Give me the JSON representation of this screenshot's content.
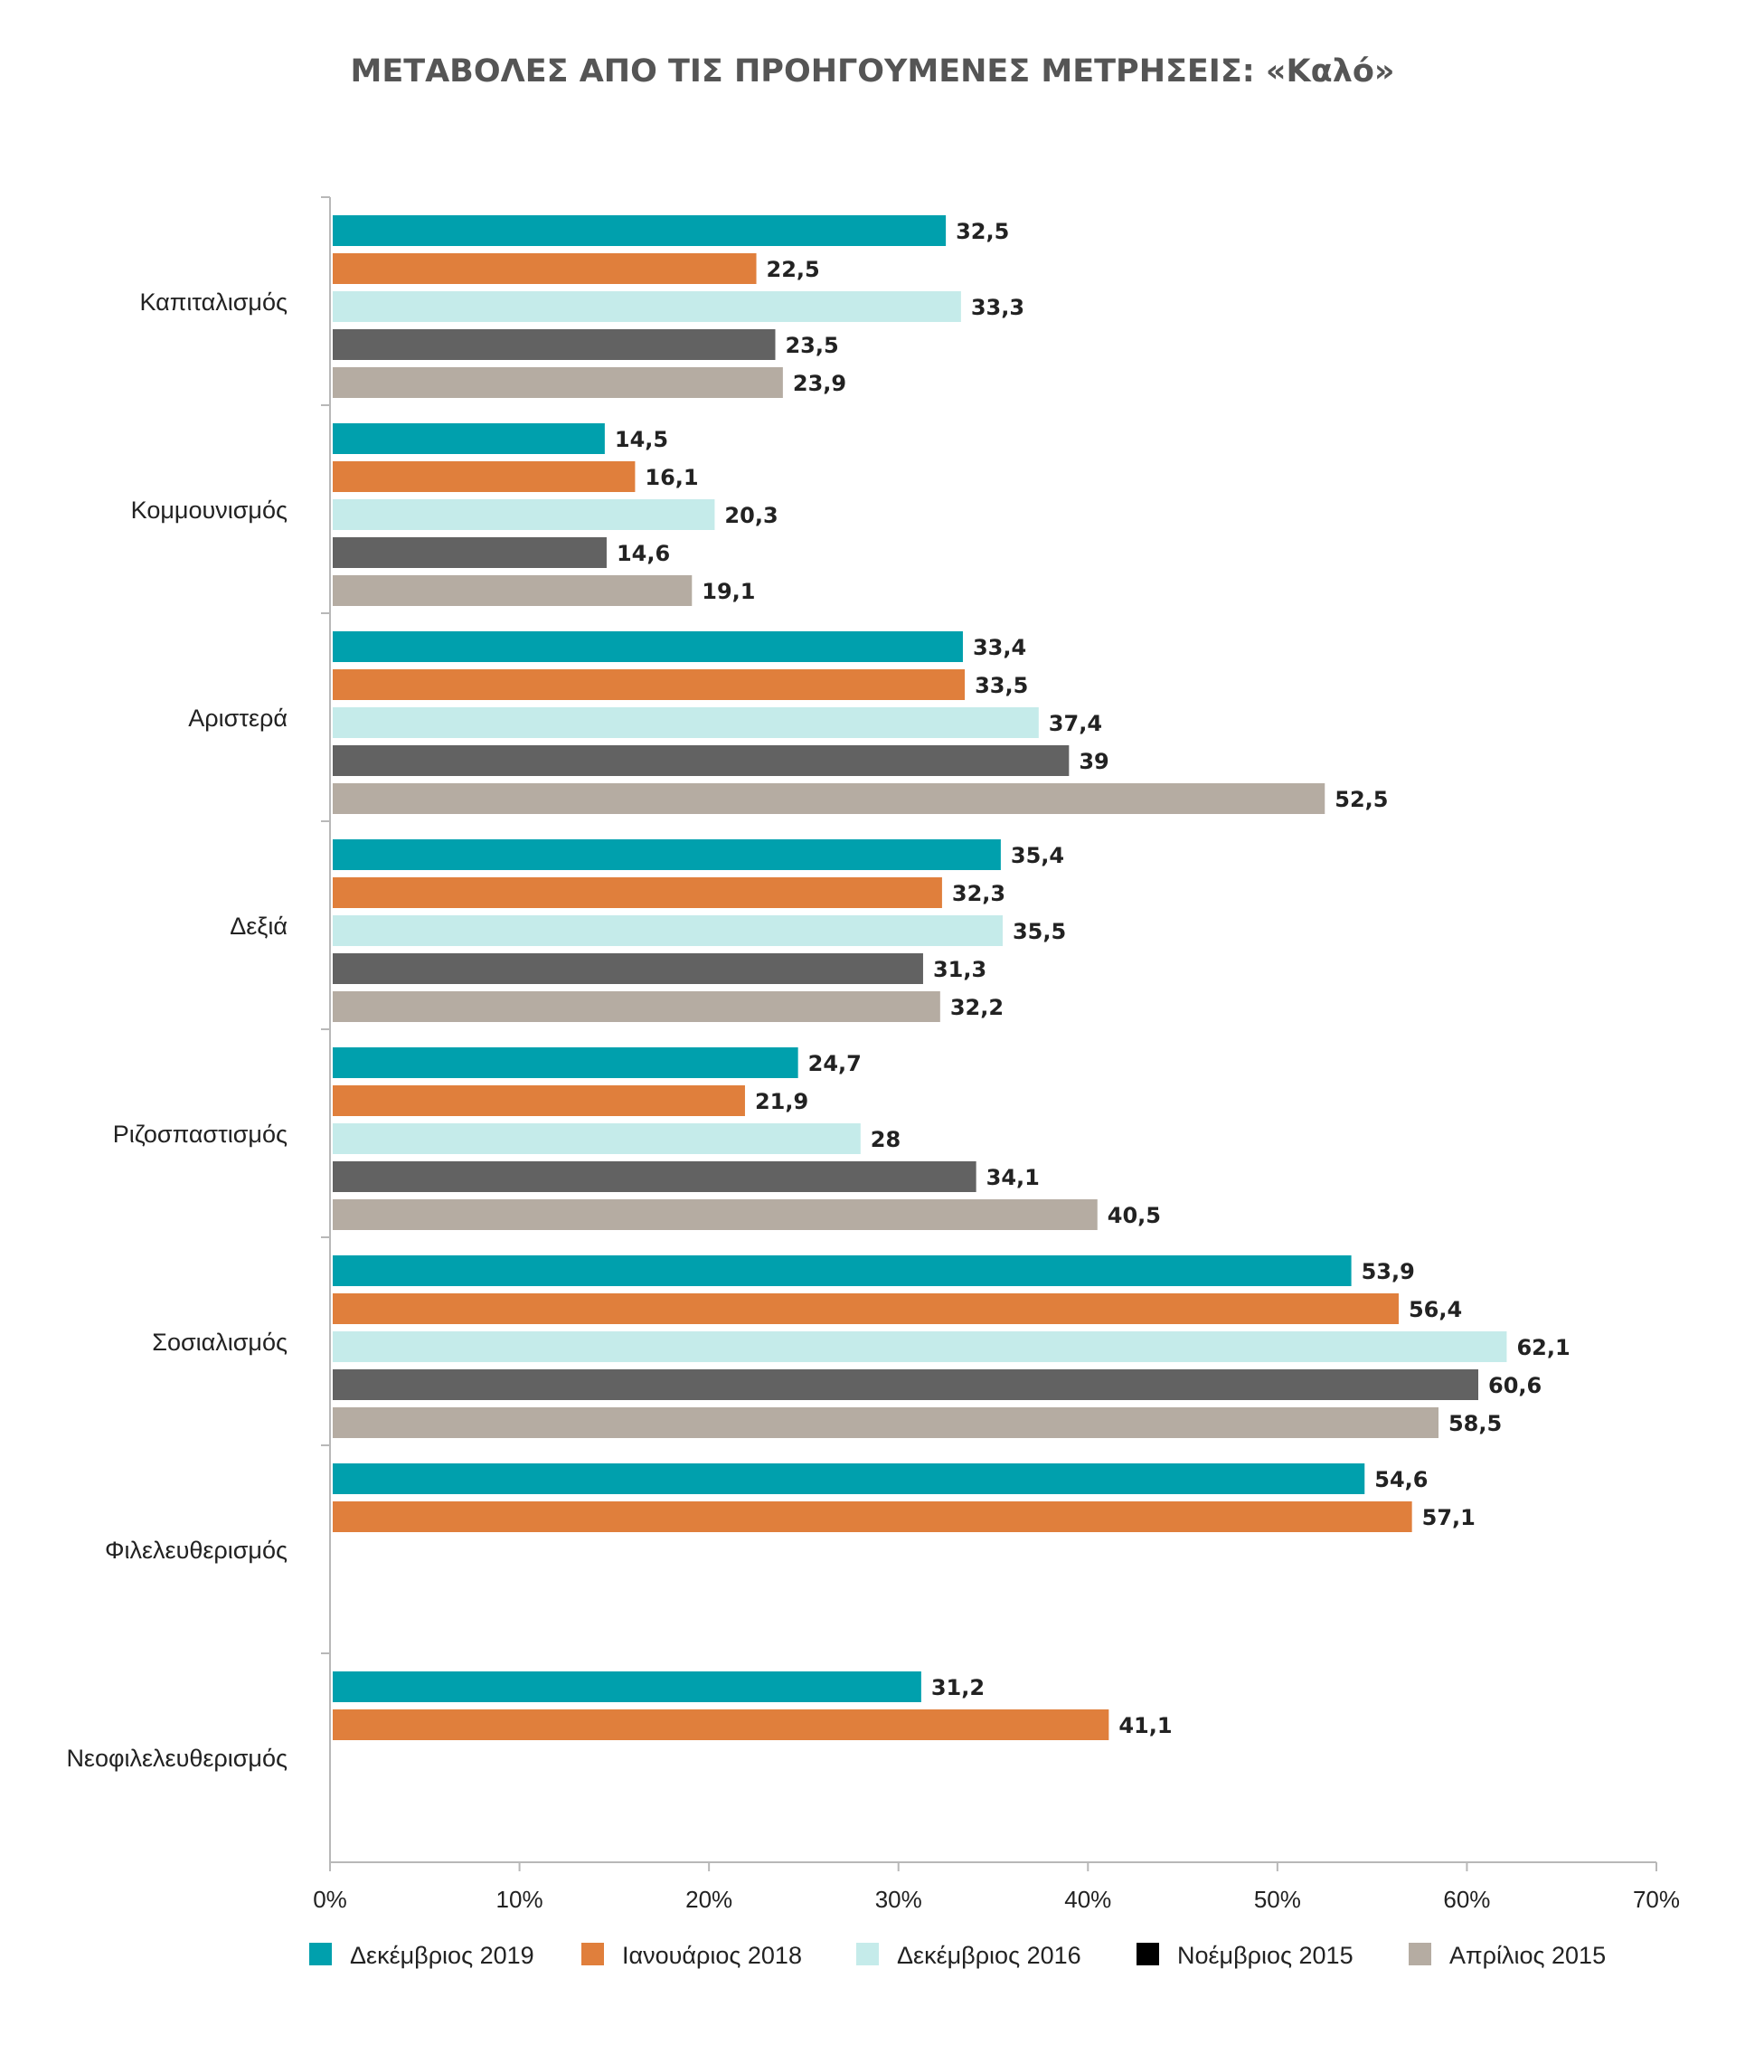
{
  "chart_data": {
    "type": "bar",
    "orientation": "horizontal",
    "title": "ΜΕΤΑΒΟΛΕΣ ΑΠΟ ΤΙΣ ΠΡΟΗΓΟΥΜΕΝΕΣ ΜΕΤΡΗΣΕΙΣ: «Καλό»",
    "categories": [
      "Καπιταλισμός",
      "Κομμουνισμός",
      "Αριστερά",
      "Δεξιά",
      "Ριζοσπαστισμός",
      "Σοσιαλισμός",
      "Φιλελευθερισμός",
      "Νεοφιλελευθερισμός"
    ],
    "series": [
      {
        "name": "Δεκέμβριος 2019",
        "color": "#00a0ad",
        "values": [
          32.5,
          14.5,
          33.4,
          35.4,
          24.7,
          53.9,
          54.6,
          31.2
        ]
      },
      {
        "name": "Ιανουάριος 2018",
        "color": "#e07f3c",
        "values": [
          22.5,
          16.1,
          33.5,
          32.3,
          21.9,
          56.4,
          57.1,
          41.1
        ]
      },
      {
        "name": "Δεκέμβριος 2016",
        "color": "#c5ebea",
        "values": [
          33.3,
          20.3,
          37.4,
          35.5,
          28,
          62.1,
          null,
          null
        ]
      },
      {
        "name": "Νοέμβριος 2015",
        "color": "#626262",
        "legend_color": "#000000",
        "values": [
          23.5,
          14.6,
          39,
          31.3,
          34.1,
          60.6,
          null,
          null
        ]
      },
      {
        "name": "Απρίλιος 2015",
        "color": "#b5aca2",
        "values": [
          23.9,
          19.1,
          52.5,
          32.2,
          40.5,
          58.5,
          null,
          null
        ]
      }
    ],
    "value_labels": [
      [
        "32,5",
        "14,5",
        "33,4",
        "35,4",
        "24,7",
        "53,9",
        "54,6",
        "31,2"
      ],
      [
        "22,5",
        "16,1",
        "33,5",
        "32,3",
        "21,9",
        "56,4",
        "57,1",
        "41,1"
      ],
      [
        "33,3",
        "20,3",
        "37,4",
        "35,5",
        "28",
        "62,1",
        "",
        ""
      ],
      [
        "23,5",
        "14,6",
        "39",
        "31,3",
        "34,1",
        "60,6",
        "",
        ""
      ],
      [
        "23,9",
        "19,1",
        "52,5",
        "32,2",
        "40,5",
        "58,5",
        "",
        ""
      ]
    ],
    "x_ticks": [
      "0%",
      "10%",
      "20%",
      "30%",
      "40%",
      "50%",
      "60%",
      "70%"
    ],
    "xlim": [
      0,
      70
    ],
    "xlabel": "",
    "ylabel": "",
    "grid": false,
    "legend_position": "bottom"
  }
}
